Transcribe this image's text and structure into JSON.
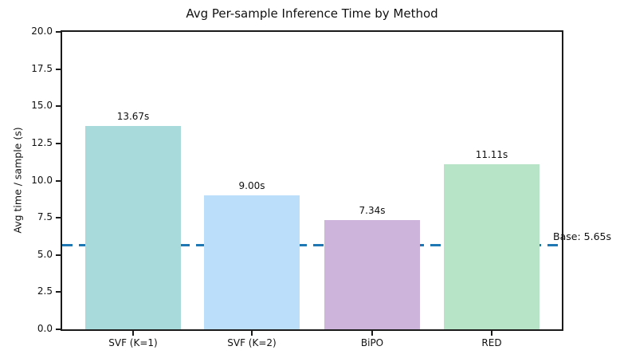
{
  "chart_data": {
    "type": "bar",
    "title": "Avg Per-sample Inference Time by Method",
    "xlabel": "",
    "ylabel": "Avg time / sample (s)",
    "categories": [
      "SVF (K=1)",
      "SVF (K=2)",
      "BiPO",
      "RED"
    ],
    "values": [
      13.67,
      9.0,
      7.34,
      11.11
    ],
    "value_labels": [
      "13.67s",
      "9.00s",
      "7.34s",
      "11.11s"
    ],
    "bar_colors": [
      "#a8dadc",
      "#bbdefb",
      "#cdb4db",
      "#b7e4c7"
    ],
    "ylim": [
      0,
      20
    ],
    "yticks": [
      0.0,
      2.5,
      5.0,
      7.5,
      10.0,
      12.5,
      15.0,
      17.5,
      20.0
    ],
    "ytick_labels": [
      "0.0",
      "2.5",
      "5.0",
      "7.5",
      "10.0",
      "12.5",
      "15.0",
      "17.5",
      "20.0"
    ],
    "grid": false,
    "legend": "none",
    "background_color": "#ffffff",
    "baseline": {
      "value": 5.65,
      "label": "Base: 5.65s",
      "color": "#1f77b4",
      "style": "dashed"
    }
  }
}
